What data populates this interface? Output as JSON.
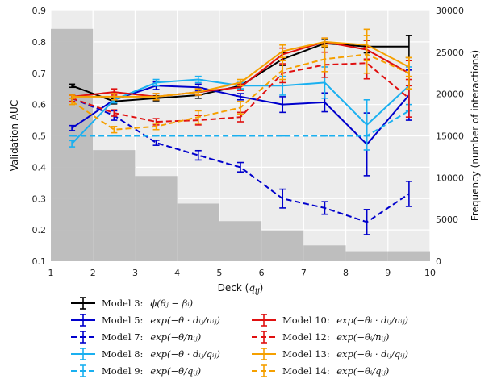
{
  "chart_data": {
    "type": "line",
    "xlabel": "Deck (q_ij)",
    "xlabel_main": "Deck (",
    "xlabel_var": "q",
    "xlabel_sub": "ij",
    "xlabel_end": ")",
    "ylabel": "Validation AUC",
    "y2label": "Frequency (number of interactions)",
    "xlim": [
      1,
      10
    ],
    "ylim": [
      0.1,
      0.9
    ],
    "y2lim": [
      0,
      30000
    ],
    "xticks": [
      "1",
      "2",
      "3",
      "4",
      "5",
      "6",
      "7",
      "8",
      "9",
      "10"
    ],
    "yticks": [
      "0.1",
      "0.2",
      "0.3",
      "0.4",
      "0.5",
      "0.6",
      "0.7",
      "0.8",
      "0.9"
    ],
    "y2ticks": [
      "0",
      "5000",
      "10000",
      "15000",
      "20000",
      "25000",
      "30000"
    ],
    "grid": true,
    "x": [
      1.5,
      2.5,
      3.5,
      4.5,
      5.5,
      6.5,
      7.5,
      8.5,
      9.5
    ],
    "histogram": {
      "bin_edges": [
        1,
        2,
        3,
        4,
        5,
        6,
        7,
        8,
        9,
        10
      ],
      "frequency": [
        27800,
        13300,
        10200,
        6900,
        4800,
        3700,
        1900,
        1200,
        1200
      ],
      "color": "#bcbcbc"
    },
    "series": [
      {
        "name": "Model 3: ϕ(θ_j − β_i)",
        "legend_label": "Model 3:",
        "legend_math": "ϕ(θⱼ − βᵢ)",
        "color": "#000000",
        "dashed": false,
        "values": [
          0.66,
          0.61,
          0.62,
          0.63,
          0.66,
          0.745,
          0.795,
          0.785,
          0.785
        ],
        "errors": [
          0.005,
          0.008,
          0.008,
          0.01,
          0.01,
          0.02,
          0.012,
          0.02,
          0.035
        ]
      },
      {
        "name": "Model 5: exp(−θ·d_ij/n_ij)",
        "legend_label": "Model 5:",
        "legend_math": "exp(−θ · dᵢⱼ/nᵢⱼ)",
        "color": "#0000cc",
        "dashed": false,
        "values": [
          0.525,
          0.615,
          0.66,
          0.655,
          0.625,
          0.6,
          0.607,
          0.473,
          0.63
        ],
        "errors": [
          0.008,
          0.008,
          0.012,
          0.01,
          0.01,
          0.025,
          0.03,
          0.1,
          0.08
        ]
      },
      {
        "name": "Model 7: exp(−θ/n_ij)",
        "legend_label": "Model 7:",
        "legend_math": "exp(−θ/nᵢⱼ)",
        "color": "#0000cc",
        "dashed": true,
        "values": [
          0.62,
          0.565,
          0.478,
          0.438,
          0.4,
          0.3,
          0.27,
          0.225,
          0.315
        ],
        "errors": [
          0.01,
          0.015,
          0.008,
          0.015,
          0.015,
          0.03,
          0.02,
          0.04,
          0.04
        ]
      },
      {
        "name": "Model 8: exp(−θ·d_ij/q_ij)",
        "legend_label": "Model 8:",
        "legend_math": "exp(−θ · dᵢⱼ/qᵢⱼ)",
        "color": "#1ab0f0",
        "dashed": false,
        "values": [
          0.475,
          0.615,
          0.67,
          0.68,
          0.66,
          0.66,
          0.67,
          0.535,
          0.66
        ],
        "errors": [
          0.01,
          0.01,
          0.01,
          0.01,
          0.01,
          0.03,
          0.05,
          0.08,
          0.06
        ]
      },
      {
        "name": "Model 9: exp(−θ/q_ij)",
        "legend_label": "Model 9:",
        "legend_math": "exp(−θ/qᵢⱼ)",
        "color": "#1ab0f0",
        "dashed": true,
        "values": [
          0.5,
          0.5,
          0.5,
          0.5,
          0.5,
          0.5,
          0.5,
          0.5,
          0.58
        ],
        "errors": [
          0,
          0,
          0,
          0,
          0,
          0,
          0,
          0,
          0
        ]
      },
      {
        "name": "Model 10: exp(−θ_i·d_ij/n_ij)",
        "legend_label": "Model 10:",
        "legend_math": "exp(−θᵢ · dᵢⱼ/nᵢⱼ)",
        "color": "#e01010",
        "dashed": false,
        "values": [
          0.625,
          0.64,
          0.625,
          0.64,
          0.655,
          0.76,
          0.8,
          0.775,
          0.7
        ],
        "errors": [
          0.005,
          0.01,
          0.01,
          0.01,
          0.01,
          0.02,
          0.012,
          0.03,
          0.04
        ]
      },
      {
        "name": "Model 12: exp(−θ_i/n_ij)",
        "legend_label": "Model 12:",
        "legend_math": "exp(−θᵢ/nᵢⱼ)",
        "color": "#e01010",
        "dashed": true,
        "values": [
          0.62,
          0.573,
          0.545,
          0.55,
          0.56,
          0.7,
          0.727,
          0.732,
          0.62
        ],
        "errors": [
          0.01,
          0.01,
          0.01,
          0.015,
          0.015,
          0.03,
          0.04,
          0.05,
          0.06
        ]
      },
      {
        "name": "Model 13: exp(−θ_i·d_ij/q_ij)",
        "legend_label": "Model 13:",
        "legend_math": "exp(−θᵢ · dᵢⱼ/qᵢⱼ)",
        "color": "#f5a000",
        "dashed": false,
        "values": [
          0.625,
          0.625,
          0.625,
          0.64,
          0.67,
          0.77,
          0.8,
          0.79,
          0.72
        ],
        "errors": [
          0.005,
          0.01,
          0.01,
          0.01,
          0.01,
          0.02,
          0.012,
          0.05,
          0.03
        ]
      },
      {
        "name": "Model 14: exp(−θ_i/q_ij)",
        "legend_label": "Model 14:",
        "legend_math": "exp(−θᵢ/qᵢⱼ)",
        "color": "#f5a000",
        "dashed": true,
        "values": [
          0.61,
          0.52,
          0.53,
          0.56,
          0.59,
          0.71,
          0.745,
          0.76,
          0.7
        ],
        "errors": [
          0.01,
          0.01,
          0.01,
          0.02,
          0.02,
          0.03,
          0.04,
          0.06,
          0.05
        ]
      }
    ]
  }
}
